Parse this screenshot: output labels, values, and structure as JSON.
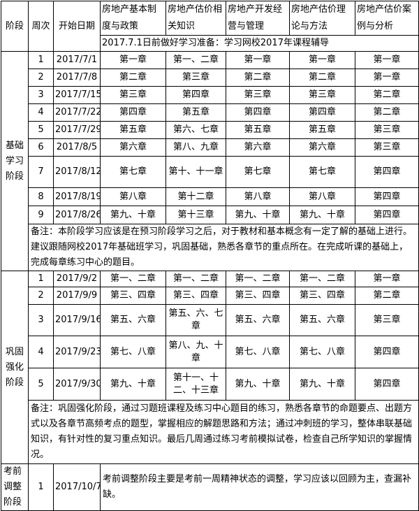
{
  "header": {
    "phase": "阶段",
    "week": "周次",
    "start_date": "开始日期",
    "subjects": [
      "房地产基本制度与政策",
      "房地产估价相关知识",
      "房地产开发经营与管理",
      "房地产估价理论与方法",
      "房地产估价案例与分析"
    ],
    "prep_note": "2017.7.1日前做好学习准备：学习网校2017年课程辅导"
  },
  "basic": {
    "phase": "基础学习阶段",
    "rows": [
      {
        "week": "1",
        "date": "2017/7/1",
        "cells": [
          "第一章",
          "第一、二章",
          "第一章",
          "第一章",
          "第一章"
        ]
      },
      {
        "week": "2",
        "date": "2017/7/8",
        "cells": [
          "第二章",
          "第三章",
          "第二章",
          "第二章",
          "第一章"
        ]
      },
      {
        "week": "3",
        "date": "2017/7/15",
        "cells": [
          "第三章",
          "第四章",
          "第三章",
          "第三章",
          "第二章"
        ]
      },
      {
        "week": "4",
        "date": "2017/7/22",
        "cells": [
          "第四章",
          "第五章",
          "第四章",
          "第四章",
          "第二章"
        ]
      },
      {
        "week": "5",
        "date": "2017/7/29",
        "cells": [
          "第五章",
          "第六、七章",
          "第五章",
          "第五章",
          "第三章"
        ]
      },
      {
        "week": "6",
        "date": "2017/8/5",
        "cells": [
          "第六章",
          "第八、九章",
          "第六章",
          "第六章",
          "第三章"
        ]
      },
      {
        "week": "7",
        "date": "2017/8/12",
        "cells": [
          "第七章",
          "第十、十一章",
          "第七章",
          "第七章",
          "第四章"
        ]
      },
      {
        "week": "8",
        "date": "2017/8/19",
        "cells": [
          "第八章",
          "第十二章",
          "第八章",
          "第八章",
          "第四章"
        ]
      },
      {
        "week": "9",
        "date": "2017/8/26",
        "cells": [
          "第九、十章",
          "第十三章",
          "第九、十章",
          "第九、十章",
          "第四章"
        ]
      }
    ],
    "note": "备注：本阶段学习应该是在预习阶段学习之后，对于教材和基本概念有一定了解的基础上进行。建议跟随网校2017年基础班学习，巩固基础，熟悉各章节的重点所在。在完成听课的基础上，完成每章练习中心的题目。"
  },
  "strengthen": {
    "phase": "巩固强化阶段",
    "rows": [
      {
        "week": "1",
        "date": "2017/9/2",
        "cells": [
          "第一、二章",
          "第一、二章",
          "第一、二章",
          "第一、二章",
          "第一章"
        ]
      },
      {
        "week": "2",
        "date": "2017/9/9",
        "cells": [
          "第三、四章",
          "第三、四章",
          "第三、四章",
          "第三、四章",
          "第二章"
        ]
      },
      {
        "week": "3",
        "date": "2017/9/16",
        "cells": [
          "第五、六章",
          "第五、六、七章",
          "第五、六章",
          "第五、六章",
          "第三章"
        ]
      },
      {
        "week": "4",
        "date": "2017/9/23",
        "cells": [
          "第七、八章",
          "第八、九、十章",
          "第七、八章",
          "第七、八章",
          "第四章"
        ]
      },
      {
        "week": "5",
        "date": "2017/9/30",
        "cells": [
          "第九、十章",
          "第十一、十二、十三章",
          "第九、十章",
          "第九、十章",
          "第四章"
        ]
      }
    ],
    "note": "备注：巩固强化阶段，通过习题班课程及练习中心题目的练习，熟悉各章节的命题要点、出题方式以及各章节高频考点的题型，掌握相应的解题思路和方法；通过冲刺班的学习，整体串联基础知识，有针对性的复习重点知识。最后几周通过练习考前模拟试卷，检查自己所学知识的掌握情况。"
  },
  "final": {
    "phase": "考前调整阶段",
    "week": "1",
    "date": "2017/10/7",
    "text": "考前调整阶段主要是考前一周精神状态的调整，学习应该以回顾为主，查漏补缺。"
  }
}
